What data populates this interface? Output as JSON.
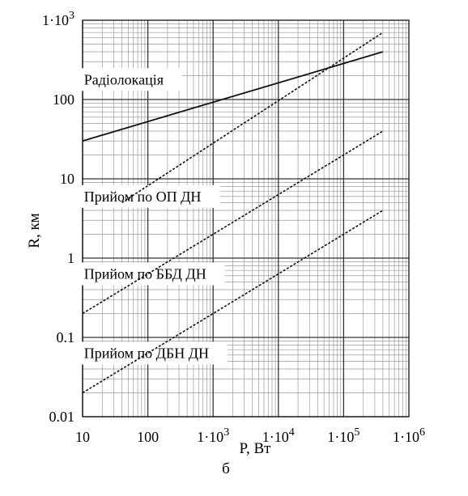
{
  "chart_data": {
    "type": "line",
    "xscale": "log",
    "yscale": "log",
    "xlim": [
      10,
      1000000
    ],
    "ylim": [
      0.01,
      1000
    ],
    "xlabel": "P, Вт",
    "ylabel": "R, км",
    "caption": "б",
    "grid": true,
    "xticks": [
      {
        "value": 10,
        "label": "10"
      },
      {
        "value": 100,
        "label": "100"
      },
      {
        "value": 1000,
        "label": "1·10",
        "exp": "3"
      },
      {
        "value": 10000,
        "label": "1·10",
        "exp": "4"
      },
      {
        "value": 100000,
        "label": "1·10",
        "exp": "5"
      },
      {
        "value": 1000000,
        "label": "1·10",
        "exp": "6"
      }
    ],
    "yticks": [
      {
        "value": 1000,
        "label": "1·10",
        "exp": "3"
      },
      {
        "value": 100,
        "label": "100"
      },
      {
        "value": 10,
        "label": "10"
      },
      {
        "value": 1,
        "label": "1"
      },
      {
        "value": 0.1,
        "label": "0.1"
      },
      {
        "value": 0.01,
        "label": "0.01"
      }
    ],
    "series": [
      {
        "name": "Радіолокація",
        "style": "solid",
        "x": [
          10,
          400000
        ],
        "y": [
          30,
          400
        ]
      },
      {
        "style": "dashed",
        "x": [
          40,
          400000
        ],
        "y": [
          5,
          700
        ]
      },
      {
        "name": "Прийом по ОП ДН",
        "style": "dashed",
        "x": [
          10,
          400000
        ],
        "y": [
          0.2,
          40
        ]
      },
      {
        "name": "Прийом по ББД ДН",
        "style": "dashed",
        "x": [
          10,
          400000
        ],
        "y": [
          0.02,
          4
        ]
      }
    ],
    "annotations": [
      {
        "text": "Радіолокація",
        "x": 10.5,
        "y": 155
      },
      {
        "text": "Прийом по ОП ДН",
        "x": 10.5,
        "y": 5.2
      },
      {
        "text": "Прийом по ББД ДН",
        "x": 10.5,
        "y": 0.55
      },
      {
        "text": "Прийом по ДБН ДН",
        "x": 10.5,
        "y": 0.055
      }
    ]
  }
}
